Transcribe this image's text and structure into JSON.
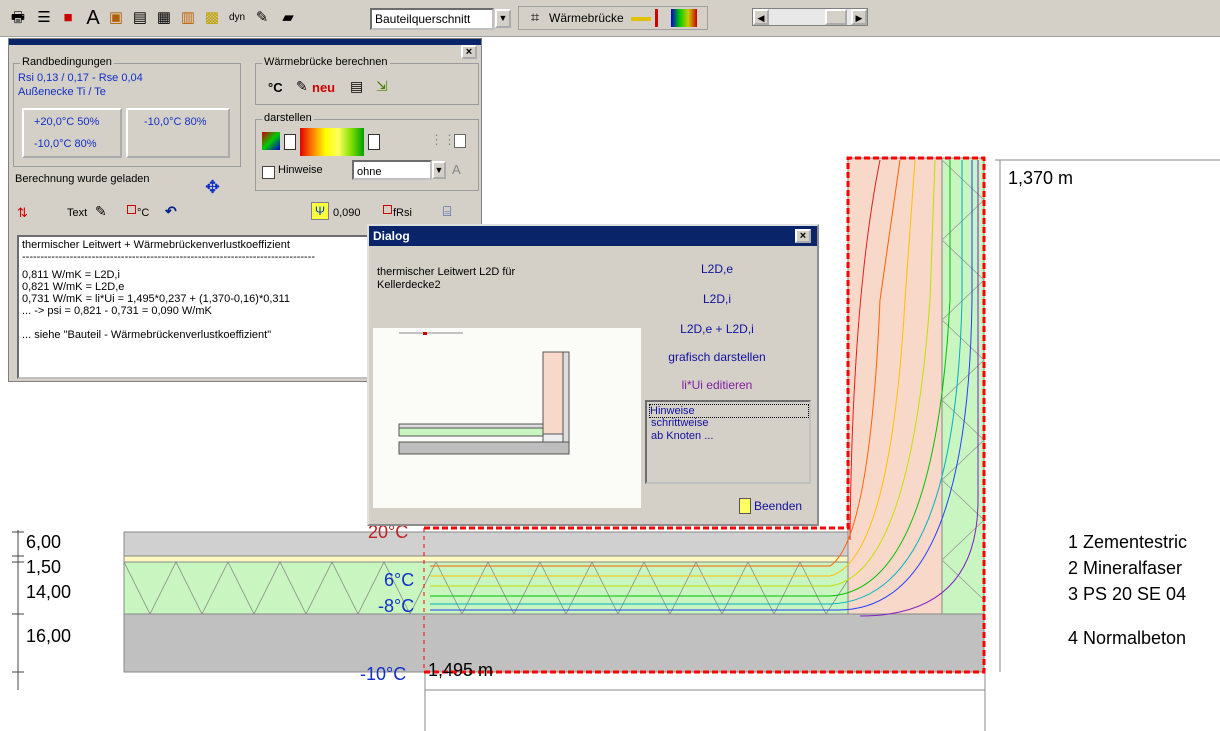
{
  "toolbar": {
    "view_select": "Bauteilquerschnitt",
    "waermebruecke_label": "Wärmebrücke",
    "dyn_label": "dyn",
    "font_icon_label": "A"
  },
  "panel": {
    "randbedingungen": {
      "title": "Randbedingungen",
      "line1": "Rsi 0,13 / 0,17 - Rse 0,04",
      "line2": "Außenecke Ti / Te",
      "cell1a": "+20,0°C 50%",
      "cell1b": "-10,0°C 80%",
      "cell2": "-10,0°C 80%"
    },
    "wb_berechnen": {
      "title": "Wärmebrücke berechnen",
      "degc": "°C",
      "neu": "neu"
    },
    "darstellen": {
      "title": "darstellen",
      "hinweise_label": "Hinweise",
      "ohne_value": "ohne",
      "a_label": "A"
    },
    "status": "Berechnung wurde geladen",
    "row": {
      "text_label": "Text",
      "degc_label": "°C",
      "psi_value": "0,090",
      "frsi_label": "fRsi"
    },
    "output_lines": [
      "thermischer Leitwert + Wärmebrückenverlustkoeffizient",
      "--------------------------------------------------------------------------------",
      "0,811 W/mK = L2D,i",
      "0,821 W/mK = L2D,e",
      "0,731 W/mK = li*Ui = 1,495*0,237 + (1,370-0,16)*0,311",
      "... -> psi = 0,821 - 0,731 = 0,090 W/mK",
      "",
      "... siehe \"Bauteil - Wärmebrückenverlustkoeffizient\""
    ]
  },
  "dialog": {
    "title": "Dialog",
    "heading_line1": "thermischer Leitwert L2D für",
    "heading_line2": "Kellerdecke2",
    "links": [
      "L2D,e",
      "L2D,i",
      "L2D,e + L2D,i",
      "grafisch darstellen",
      "li*Ui editieren"
    ],
    "list": [
      "Hinweise",
      "schrittweise",
      "ab Knoten ..."
    ],
    "beenden": "Beenden"
  },
  "drawing": {
    "dim_height": "1,370 m",
    "dim_width": "1,495 m",
    "thicknesses": [
      "6,00",
      "1,50",
      "14,00",
      "16,00"
    ],
    "temps": {
      "t20": "20°C",
      "t6": "6°C",
      "tm8": "-8°C",
      "tm10": "-10°C"
    },
    "layers": [
      "1 Zementestric",
      "2 Mineralfaser",
      "3 PS 20 SE 04",
      "4 Normalbeton"
    ]
  },
  "colors": {
    "accent": "#0a246a",
    "isoline_blue": "#1030c8",
    "insulation": "#c8f5c0",
    "concrete": "#c0c0c0",
    "wall": "#f8d8c8"
  }
}
